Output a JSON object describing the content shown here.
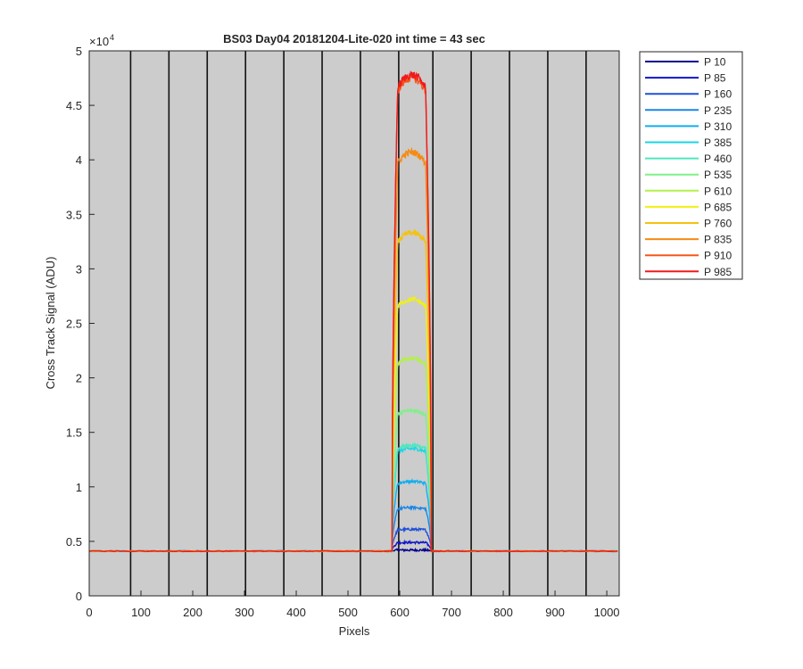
{
  "chart_data": {
    "type": "line",
    "title": "BS03 Day04 20181204-Lite-020 int time = 43 sec",
    "xlabel": "Pixels",
    "ylabel": "Cross Track Signal (ADU)",
    "y_exponent_label": "×10",
    "y_exponent_power": "4",
    "xlim": [
      0,
      1024
    ],
    "ylim": [
      0,
      5
    ],
    "x_ticks": [
      0,
      100,
      200,
      300,
      400,
      500,
      600,
      700,
      800,
      900,
      1000
    ],
    "x_tick_labels": [
      "0",
      "100",
      "200",
      "300",
      "400",
      "500",
      "600",
      "700",
      "800",
      "900",
      "1000"
    ],
    "y_ticks": [
      0,
      0.5,
      1,
      1.5,
      2,
      2.5,
      3,
      3.5,
      4,
      4.5,
      5
    ],
    "y_tick_labels": [
      "0",
      "0.5",
      "1",
      "1.5",
      "2",
      "2.5",
      "3",
      "3.5",
      "4",
      "4.5",
      "5"
    ],
    "plot_background": "#cccccc",
    "vertical_lines_x": [
      80,
      154,
      228,
      302,
      376,
      450,
      524,
      598,
      664,
      738,
      812,
      886,
      960
    ],
    "baseline": 0.41,
    "plateau_start": 587,
    "plateau_end": 659,
    "legend_position": "outside-right",
    "series": [
      {
        "name": "P 10",
        "color": "#00008f",
        "peak": 0.42
      },
      {
        "name": "P 85",
        "color": "#0f14c8",
        "peak": 0.49
      },
      {
        "name": "P 160",
        "color": "#1f50d9",
        "peak": 0.61
      },
      {
        "name": "P 235",
        "color": "#1a86e6",
        "peak": 0.81
      },
      {
        "name": "P 310",
        "color": "#12aef0",
        "peak": 1.05
      },
      {
        "name": "P 385",
        "color": "#1ad6e6",
        "peak": 1.35
      },
      {
        "name": "P 460",
        "color": "#50e6c0",
        "peak": 1.38
      },
      {
        "name": "P 535",
        "color": "#7ff08a",
        "peak": 1.7
      },
      {
        "name": "P 610",
        "color": "#b3f04a",
        "peak": 2.18
      },
      {
        "name": "P 685",
        "color": "#f0f014",
        "peak": 2.72
      },
      {
        "name": "P 760",
        "color": "#f5c20f",
        "peak": 3.33
      },
      {
        "name": "P 835",
        "color": "#f58a14",
        "peak": 4.07
      },
      {
        "name": "P 910",
        "color": "#f5561a",
        "peak": 4.75
      },
      {
        "name": "P 985",
        "color": "#f01a1a",
        "peak": 4.78
      }
    ]
  }
}
